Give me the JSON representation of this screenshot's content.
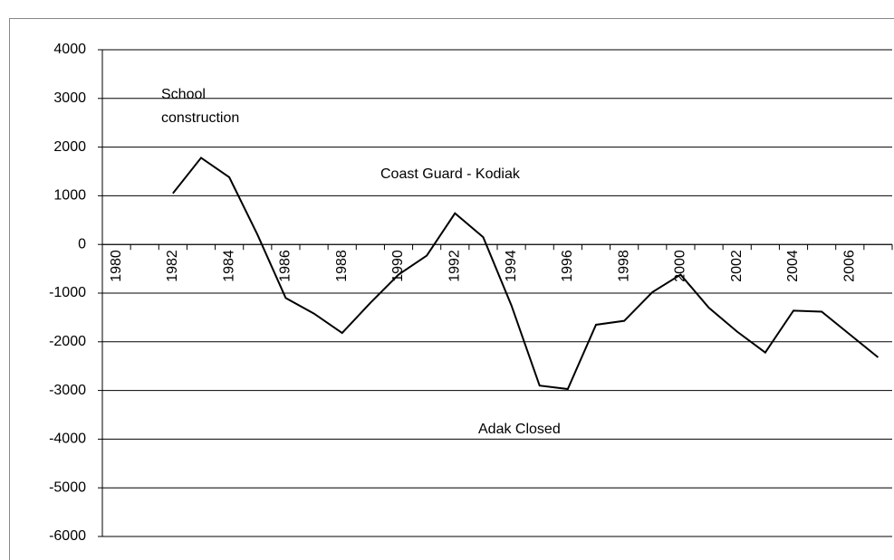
{
  "chart_data": {
    "type": "line",
    "categories": [
      "1980",
      null,
      "1982",
      null,
      "1984",
      null,
      "1986",
      null,
      "1988",
      null,
      "1990",
      null,
      "1992",
      null,
      "1994",
      null,
      "1996",
      null,
      "1998",
      null,
      "2000",
      null,
      "2002",
      null,
      "2004",
      null,
      "2006",
      null
    ],
    "series": [
      {
        "name": null,
        "color": "#000000",
        "values": [
          null,
          null,
          1050,
          1780,
          1380,
          200,
          -1100,
          -1420,
          -1820,
          -1200,
          -620,
          -230,
          640,
          150,
          -1250,
          -2900,
          -2970,
          -1650,
          -1570,
          -980,
          -620,
          -1300,
          -1790,
          -2220,
          -1360,
          -1380,
          -1850,
          -2320
        ]
      }
    ],
    "ylim": [
      -6000,
      4000
    ],
    "yticks": [
      -6000,
      -5000,
      -4000,
      -3000,
      -2000,
      -1000,
      0,
      1000,
      2000,
      3000,
      4000
    ],
    "grid": true,
    "annotations": [
      "School construction",
      "Coast Guard - Kodiak",
      "Adak Closed"
    ]
  }
}
